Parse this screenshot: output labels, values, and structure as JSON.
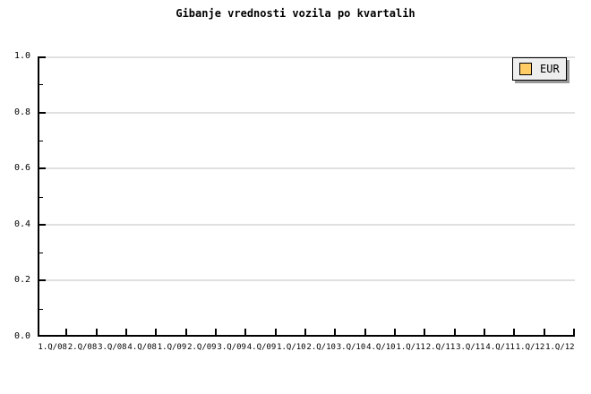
{
  "chart_data": {
    "type": "line",
    "title": "Gibanje vrednosti vozila po kvartalih",
    "categories": [
      "1.Q/08",
      "2.Q/08",
      "3.Q/08",
      "4.Q/08",
      "1.Q/09",
      "2.Q/09",
      "3.Q/09",
      "4.Q/09",
      "1.Q/10",
      "2.Q/10",
      "3.Q/10",
      "4.Q/10",
      "1.Q/11",
      "2.Q/11",
      "3.Q/11",
      "4.Q/11",
      "1.Q/12",
      "1.Q/12"
    ],
    "series": [
      {
        "name": "EUR",
        "color": "#FFCC66",
        "values": []
      }
    ],
    "xlabel": "",
    "ylabel": "",
    "ylim": [
      0.0,
      1.0
    ],
    "yticks": [
      0.0,
      0.2,
      0.4,
      0.6,
      0.8,
      1.0
    ],
    "ytick_labels": [
      "0.0",
      "0.2",
      "0.4",
      "0.6",
      "0.8",
      "1.0"
    ],
    "yticks_minor": [
      0.1,
      0.3,
      0.5,
      0.7,
      0.9
    ],
    "grid": "horizontal-major",
    "legend_position": "top-right"
  },
  "legend": {
    "items": [
      {
        "label": "EUR",
        "color": "#FFCC66"
      }
    ]
  },
  "colors": {
    "background": "#ffffff",
    "axis": "#000000",
    "grid": "#e0e0e0",
    "text": "#000000",
    "legend_bg": "#eeeeee",
    "legend_border": "#000000",
    "legend_shadow": "#999999",
    "swatch_border": "#000000"
  }
}
